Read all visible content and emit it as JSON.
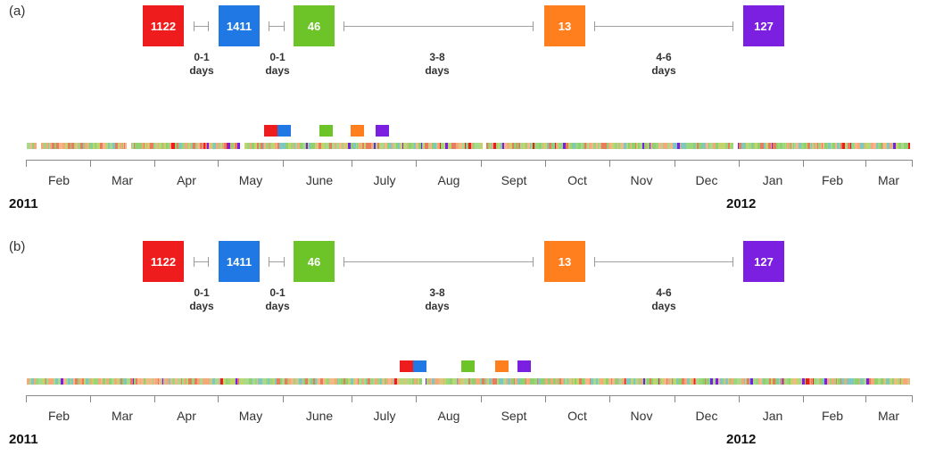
{
  "colors": {
    "red": "#ee1c1c",
    "blue": "#1f78e4",
    "green": "#6cc428",
    "orange": "#ff7f1e",
    "purple": "#7b1fe0"
  },
  "band_palette": [
    "#8fd16f",
    "#f5a97a",
    "#9bd67c",
    "#f7b58a",
    "#a9d98a",
    "#e87d5e",
    "#7fc7c1",
    "#c4d36a"
  ],
  "legend": {
    "months": [
      "Feb",
      "Mar",
      "Apr",
      "May",
      "June",
      "July",
      "Aug",
      "Sept",
      "Oct",
      "Nov",
      "Dec",
      "Jan",
      "Feb",
      "Mar"
    ],
    "years": [
      "2011",
      "2012"
    ]
  },
  "panels": [
    {
      "label": "(a)",
      "events": [
        {
          "value": "1122",
          "color": "red"
        },
        {
          "value": "1411",
          "color": "blue"
        },
        {
          "value": "46",
          "color": "green"
        },
        {
          "value": "13",
          "color": "orange"
        },
        {
          "value": "127",
          "color": "purple"
        }
      ],
      "gaps": [
        {
          "range": "0-1",
          "unit": "days"
        },
        {
          "range": "0-1",
          "unit": "days"
        },
        {
          "range": "3-8",
          "unit": "days"
        },
        {
          "range": "4-6",
          "unit": "days"
        }
      ],
      "band_gaps_months": [
        0.15,
        1.55,
        3.3,
        7.05,
        10.95
      ]
    },
    {
      "label": "(b)",
      "events": [
        {
          "value": "1122",
          "color": "red"
        },
        {
          "value": "1411",
          "color": "blue"
        },
        {
          "value": "46",
          "color": "green"
        },
        {
          "value": "13",
          "color": "orange"
        },
        {
          "value": "127",
          "color": "purple"
        }
      ],
      "gaps": [
        {
          "range": "0-1",
          "unit": "days"
        },
        {
          "range": "0-1",
          "unit": "days"
        },
        {
          "range": "3-8",
          "unit": "days"
        },
        {
          "range": "4-6",
          "unit": "days"
        }
      ],
      "band_gaps_months": [
        6.1
      ]
    }
  ]
}
